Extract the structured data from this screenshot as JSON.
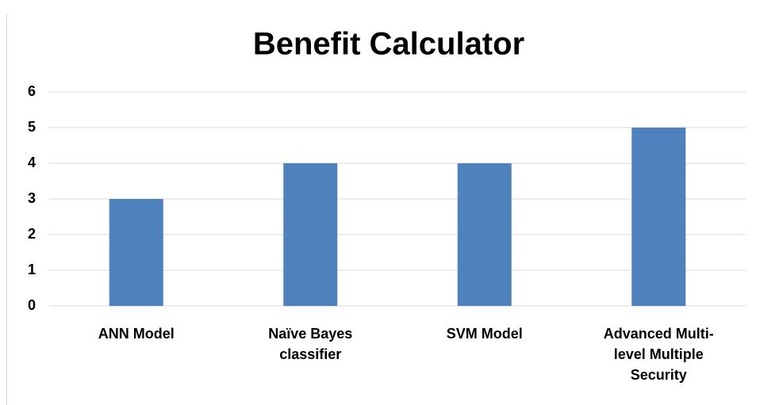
{
  "chart_data": {
    "type": "bar",
    "title": "Benefit Calculator",
    "categories": [
      "ANN Model",
      "Naïve Bayes classifier",
      "SVM Model",
      "Advanced Multi-level Multiple Security"
    ],
    "values": [
      3,
      4,
      4,
      5
    ],
    "color": "#4f81bd",
    "ylim": [
      0,
      6
    ],
    "yticks": [
      0,
      1,
      2,
      3,
      4,
      5,
      6
    ],
    "grid": true
  }
}
